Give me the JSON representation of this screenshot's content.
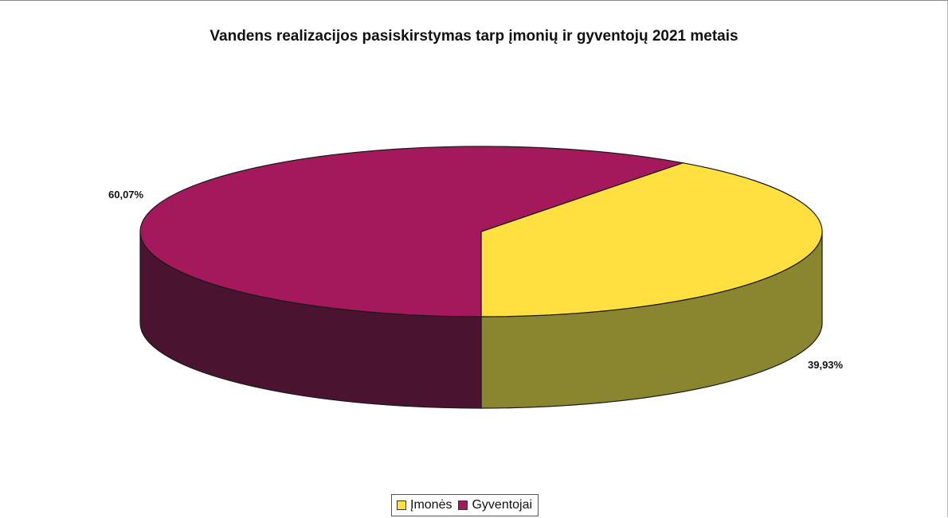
{
  "chart_data": {
    "type": "pie",
    "style": "3d",
    "title": "Vandens realizacijos pasiskirstymas tarp įmonių ir gyventojų 2021 metais",
    "categories": [
      "Įmonės",
      "Gyventojai"
    ],
    "values": [
      39.93,
      60.07
    ],
    "data_labels": [
      "39,93%",
      "60,07%"
    ],
    "colors": [
      "#ffe040",
      "#a3195b"
    ],
    "side_colors": [
      "#8a8630",
      "#4a1430"
    ],
    "legend_position": "bottom"
  }
}
